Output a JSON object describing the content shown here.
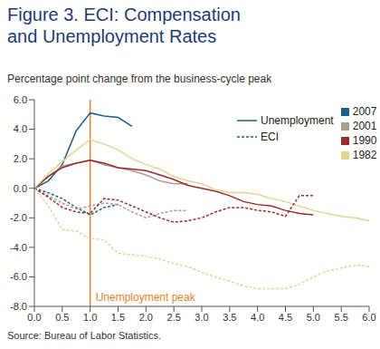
{
  "chart_data": {
    "type": "line",
    "title": "Figure 3. ECI: Compensation and Unemployment Rates",
    "subtitle": "Percentage point change from the business-cycle peak",
    "source": "Source: Bureau of Labor Statistics.",
    "x": [
      0,
      0.25,
      0.5,
      0.75,
      1,
      1.25,
      1.5,
      1.75,
      2,
      2.25,
      2.5,
      2.75,
      3,
      3.25,
      3.5,
      3.75,
      4,
      4.25,
      4.5,
      4.75,
      5,
      5.25,
      5.5,
      5.75,
      6
    ],
    "xlim": [
      0,
      6
    ],
    "xticks": [
      {
        "value": 0,
        "label": "0.0"
      },
      {
        "value": 0.5,
        "label": "0.5"
      },
      {
        "value": 1,
        "label": "1.0"
      },
      {
        "value": 1.5,
        "label": "1.5"
      },
      {
        "value": 2,
        "label": "2.0"
      },
      {
        "value": 2.5,
        "label": "2.5"
      },
      {
        "value": 3,
        "label": "3.0"
      },
      {
        "value": 3.5,
        "label": "3.5"
      },
      {
        "value": 4,
        "label": "4.0"
      },
      {
        "value": 4.5,
        "label": "4.5"
      },
      {
        "value": 5,
        "label": "5.0"
      },
      {
        "value": 5.5,
        "label": "5.5"
      },
      {
        "value": 6,
        "label": "6.0"
      }
    ],
    "ylim": [
      -8,
      6
    ],
    "yticks": [
      {
        "value": -8,
        "label": "-8.0"
      },
      {
        "value": -6,
        "label": "-6.0"
      },
      {
        "value": -4,
        "label": "-4.0"
      },
      {
        "value": -2,
        "label": "-2.0"
      },
      {
        "value": 0,
        "label": "0.0"
      },
      {
        "value": 2,
        "label": "2.0"
      },
      {
        "value": 4,
        "label": "4.0"
      },
      {
        "value": 6,
        "label": "6.0"
      }
    ],
    "grid": false,
    "legend": "upper right",
    "annotations": [
      {
        "x": 1,
        "text": "Unemployment peak",
        "color": "#e8822a"
      }
    ],
    "series": [
      {
        "name": "Unemployment",
        "line_style": "solid",
        "series": [
          {
            "name": "2007",
            "color": "#1f5f8b",
            "values": [
              0,
              0.5,
              1.6,
              3.9,
              5.1,
              4.9,
              4.8,
              4.2,
              null,
              null,
              null,
              null,
              null,
              null,
              null,
              null,
              null,
              null,
              null,
              null,
              null,
              null,
              null,
              null,
              null
            ]
          },
          {
            "name": "2001",
            "color": "#a89f91",
            "values": [
              0,
              0.8,
              1.5,
              1.7,
              1.9,
              1.6,
              1.4,
              1.2,
              0.9,
              0.5,
              0.3,
              0.3,
              null,
              null,
              null,
              null,
              null,
              null,
              null,
              null,
              null,
              null,
              null,
              null,
              null
            ]
          },
          {
            "name": "1990",
            "color": "#9e2a2b",
            "values": [
              0,
              0.8,
              1.4,
              1.7,
              1.9,
              1.7,
              1.4,
              1.3,
              1.2,
              0.9,
              0.6,
              0.2,
              0,
              -0.2,
              -0.5,
              -0.9,
              -1.1,
              -1.2,
              -1.5,
              -1.7,
              -1.8,
              null,
              null,
              null,
              null
            ]
          },
          {
            "name": "1982",
            "color": "#e3d592",
            "values": [
              0,
              1,
              1.8,
              2.6,
              3.3,
              3,
              2.6,
              2,
              1.6,
              1.3,
              0.8,
              0.5,
              0.3,
              -0.1,
              -0.3,
              -0.3,
              -0.4,
              -0.7,
              -0.9,
              -1.2,
              -1.5,
              -1.7,
              -1.9,
              -2,
              -2.2
            ]
          }
        ]
      },
      {
        "name": "ECI",
        "line_style": "dashed",
        "series": [
          {
            "name": "2007",
            "color": "#1f5f8b",
            "values": [
              0,
              -0.3,
              -0.7,
              -1.3,
              -1.8,
              -1.3,
              -1.1,
              null,
              null,
              null,
              null,
              null,
              null,
              null,
              null,
              null,
              null,
              null,
              null,
              null,
              null,
              null,
              null,
              null,
              null
            ]
          },
          {
            "name": "2001",
            "color": "#a89f91",
            "values": [
              0,
              -0.5,
              -1,
              -1.4,
              -1.2,
              -1,
              -1.1,
              -1.6,
              -2,
              -1.7,
              -1.5,
              -1.5,
              null,
              null,
              null,
              null,
              null,
              null,
              null,
              null,
              null,
              null,
              null,
              null,
              null
            ]
          },
          {
            "name": "1990",
            "color": "#9e2a2b",
            "values": [
              0,
              -0.6,
              -1.3,
              -1.6,
              -1.7,
              -0.7,
              -0.8,
              -1.2,
              -1.6,
              -2,
              -2.3,
              -2.2,
              -2,
              -1.6,
              -1.3,
              -1.3,
              -1.5,
              -1.6,
              -1.9,
              -0.5,
              -0.5,
              null,
              null,
              null,
              null
            ]
          },
          {
            "name": "1982",
            "color": "#e3d592",
            "values": [
              0,
              -1.2,
              -2.8,
              -2.9,
              -3.4,
              -3.5,
              -4.4,
              -4.5,
              -4.6,
              -4.8,
              -5.1,
              -5.3,
              -5.7,
              -6,
              -6.3,
              -6.6,
              -6.8,
              -6.8,
              -6.8,
              -6.5,
              -6,
              -5.6,
              -5.4,
              -5.2,
              -5.3
            ]
          }
        ]
      }
    ]
  }
}
